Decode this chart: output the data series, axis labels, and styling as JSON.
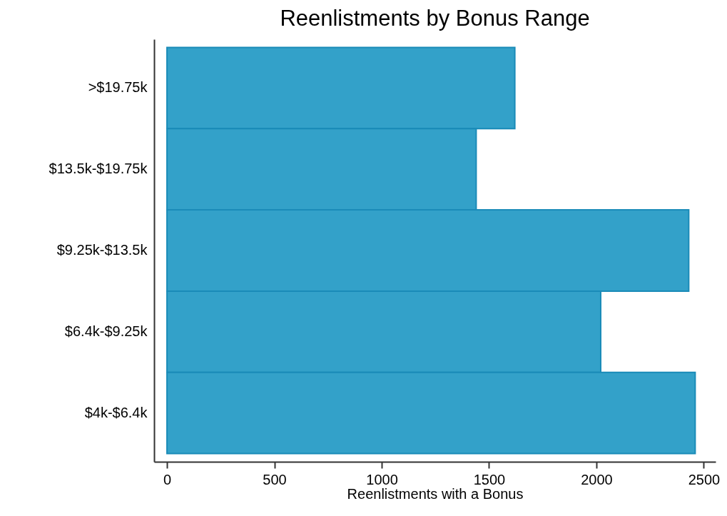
{
  "chart_data": {
    "type": "bar",
    "orientation": "horizontal",
    "title": "Reenlistments by Bonus Range",
    "xlabel": "Reenlistments with a Bonus",
    "categories": [
      ">$19.75k",
      "$13.5k-$19.75k",
      "$9.25k-$13.5k",
      "$6.4k-$9.25k",
      "$4k-$6.4k"
    ],
    "values": [
      1620,
      1440,
      2430,
      2020,
      2460
    ],
    "color": "#33a1c9",
    "xlim": [
      -60,
      2555
    ],
    "xticks": [
      0,
      500,
      1000,
      1500,
      2000,
      2500
    ],
    "grid": false
  }
}
